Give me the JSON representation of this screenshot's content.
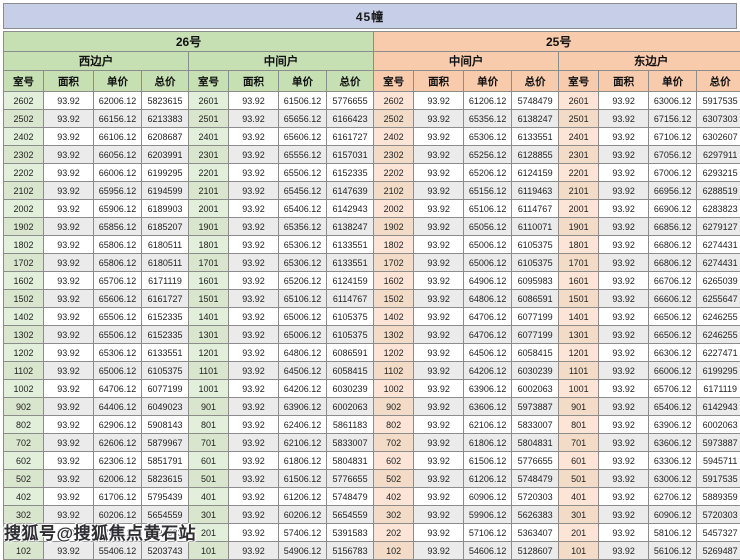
{
  "title": "45幢",
  "watermark": "搜狐号@搜狐焦点黄石站",
  "columns": [
    "室号",
    "面积",
    "单价",
    "总价"
  ],
  "colors": {
    "title_bar": "#c7cfe8",
    "green_header": "#c6e0b4",
    "green_room_cell": "#e2efda",
    "orange_header": "#f8cbad",
    "orange_room_cell": "#fce4d6",
    "stripe": "#ebebeb",
    "border": "#8c8c8c"
  },
  "sections": [
    {
      "building": "26号",
      "theme": "green",
      "units": [
        {
          "name": "西边户",
          "rows": [
            [
              "2602",
              "93.92",
              "62006.12",
              "5823615"
            ],
            [
              "2502",
              "93.92",
              "66156.12",
              "6213383"
            ],
            [
              "2402",
              "93.92",
              "66106.12",
              "6208687"
            ],
            [
              "2302",
              "93.92",
              "66056.12",
              "6203991"
            ],
            [
              "2202",
              "93.92",
              "66006.12",
              "6199295"
            ],
            [
              "2102",
              "93.92",
              "65956.12",
              "6194599"
            ],
            [
              "2002",
              "93.92",
              "65906.12",
              "6189903"
            ],
            [
              "1902",
              "93.92",
              "65856.12",
              "6185207"
            ],
            [
              "1802",
              "93.92",
              "65806.12",
              "6180511"
            ],
            [
              "1702",
              "93.92",
              "65806.12",
              "6180511"
            ],
            [
              "1602",
              "93.92",
              "65706.12",
              "6171119"
            ],
            [
              "1502",
              "93.92",
              "65606.12",
              "6161727"
            ],
            [
              "1402",
              "93.92",
              "65506.12",
              "6152335"
            ],
            [
              "1302",
              "93.92",
              "65506.12",
              "6152335"
            ],
            [
              "1202",
              "93.92",
              "65306.12",
              "6133551"
            ],
            [
              "1102",
              "93.92",
              "65006.12",
              "6105375"
            ],
            [
              "1002",
              "93.92",
              "64706.12",
              "6077199"
            ],
            [
              "902",
              "93.92",
              "64406.12",
              "6049023"
            ],
            [
              "802",
              "93.92",
              "62906.12",
              "5908143"
            ],
            [
              "702",
              "93.92",
              "62606.12",
              "5879967"
            ],
            [
              "602",
              "93.92",
              "62306.12",
              "5851791"
            ],
            [
              "502",
              "93.92",
              "62006.12",
              "5823615"
            ],
            [
              "402",
              "93.92",
              "61706.12",
              "5795439"
            ],
            [
              "302",
              "93.92",
              "60206.12",
              "5654559"
            ],
            [
              "202",
              "93.92",
              "57406.12",
              "5391583"
            ],
            [
              "102",
              "93.92",
              "55406.12",
              "5203743"
            ]
          ]
        },
        {
          "name": "中间户",
          "rows": [
            [
              "2601",
              "93.92",
              "61506.12",
              "5776655"
            ],
            [
              "2501",
              "93.92",
              "65656.12",
              "6166423"
            ],
            [
              "2401",
              "93.92",
              "65606.12",
              "6161727"
            ],
            [
              "2301",
              "93.92",
              "65556.12",
              "6157031"
            ],
            [
              "2201",
              "93.92",
              "65506.12",
              "6152335"
            ],
            [
              "2101",
              "93.92",
              "65456.12",
              "6147639"
            ],
            [
              "2001",
              "93.92",
              "65406.12",
              "6142943"
            ],
            [
              "1901",
              "93.92",
              "65356.12",
              "6138247"
            ],
            [
              "1801",
              "93.92",
              "65306.12",
              "6133551"
            ],
            [
              "1701",
              "93.92",
              "65306.12",
              "6133551"
            ],
            [
              "1601",
              "93.92",
              "65206.12",
              "6124159"
            ],
            [
              "1501",
              "93.92",
              "65106.12",
              "6114767"
            ],
            [
              "1401",
              "93.92",
              "65006.12",
              "6105375"
            ],
            [
              "1301",
              "93.92",
              "65006.12",
              "6105375"
            ],
            [
              "1201",
              "93.92",
              "64806.12",
              "6086591"
            ],
            [
              "1101",
              "93.92",
              "64506.12",
              "6058415"
            ],
            [
              "1001",
              "93.92",
              "64206.12",
              "6030239"
            ],
            [
              "901",
              "93.92",
              "63906.12",
              "6002063"
            ],
            [
              "801",
              "93.92",
              "62406.12",
              "5861183"
            ],
            [
              "701",
              "93.92",
              "62106.12",
              "5833007"
            ],
            [
              "601",
              "93.92",
              "61806.12",
              "5804831"
            ],
            [
              "501",
              "93.92",
              "61506.12",
              "5776655"
            ],
            [
              "401",
              "93.92",
              "61206.12",
              "5748479"
            ],
            [
              "301",
              "93.92",
              "60206.12",
              "5654559"
            ],
            [
              "201",
              "93.92",
              "57406.12",
              "5391583"
            ],
            [
              "101",
              "93.92",
              "54906.12",
              "5156783"
            ]
          ]
        }
      ]
    },
    {
      "building": "25号",
      "theme": "orange",
      "units": [
        {
          "name": "中间户",
          "rows": [
            [
              "2602",
              "93.92",
              "61206.12",
              "5748479"
            ],
            [
              "2502",
              "93.92",
              "65356.12",
              "6138247"
            ],
            [
              "2402",
              "93.92",
              "65306.12",
              "6133551"
            ],
            [
              "2302",
              "93.92",
              "65256.12",
              "6128855"
            ],
            [
              "2202",
              "93.92",
              "65206.12",
              "6124159"
            ],
            [
              "2102",
              "93.92",
              "65156.12",
              "6119463"
            ],
            [
              "2002",
              "93.92",
              "65106.12",
              "6114767"
            ],
            [
              "1902",
              "93.92",
              "65056.12",
              "6110071"
            ],
            [
              "1802",
              "93.92",
              "65006.12",
              "6105375"
            ],
            [
              "1702",
              "93.92",
              "65006.12",
              "6105375"
            ],
            [
              "1602",
              "93.92",
              "64906.12",
              "6095983"
            ],
            [
              "1502",
              "93.92",
              "64806.12",
              "6086591"
            ],
            [
              "1402",
              "93.92",
              "64706.12",
              "6077199"
            ],
            [
              "1302",
              "93.92",
              "64706.12",
              "6077199"
            ],
            [
              "1202",
              "93.92",
              "64506.12",
              "6058415"
            ],
            [
              "1102",
              "93.92",
              "64206.12",
              "6030239"
            ],
            [
              "1002",
              "93.92",
              "63906.12",
              "6002063"
            ],
            [
              "902",
              "93.92",
              "63606.12",
              "5973887"
            ],
            [
              "802",
              "93.92",
              "62106.12",
              "5833007"
            ],
            [
              "702",
              "93.92",
              "61806.12",
              "5804831"
            ],
            [
              "602",
              "93.92",
              "61506.12",
              "5776655"
            ],
            [
              "502",
              "93.92",
              "61206.12",
              "5748479"
            ],
            [
              "402",
              "93.92",
              "60906.12",
              "5720303"
            ],
            [
              "302",
              "93.92",
              "59906.12",
              "5626383"
            ],
            [
              "202",
              "93.92",
              "57106.12",
              "5363407"
            ],
            [
              "102",
              "93.92",
              "54606.12",
              "5128607"
            ]
          ]
        },
        {
          "name": "东边户",
          "rows": [
            [
              "2601",
              "93.92",
              "63006.12",
              "5917535"
            ],
            [
              "2501",
              "93.92",
              "67156.12",
              "6307303"
            ],
            [
              "2401",
              "93.92",
              "67106.12",
              "6302607"
            ],
            [
              "2301",
              "93.92",
              "67056.12",
              "6297911"
            ],
            [
              "2201",
              "93.92",
              "67006.12",
              "6293215"
            ],
            [
              "2101",
              "93.92",
              "66956.12",
              "6288519"
            ],
            [
              "2001",
              "93.92",
              "66906.12",
              "6283823"
            ],
            [
              "1901",
              "93.92",
              "66856.12",
              "6279127"
            ],
            [
              "1801",
              "93.92",
              "66806.12",
              "6274431"
            ],
            [
              "1701",
              "93.92",
              "66806.12",
              "6274431"
            ],
            [
              "1601",
              "93.92",
              "66706.12",
              "6265039"
            ],
            [
              "1501",
              "93.92",
              "66606.12",
              "6255647"
            ],
            [
              "1401",
              "93.92",
              "66506.12",
              "6246255"
            ],
            [
              "1301",
              "93.92",
              "66506.12",
              "6246255"
            ],
            [
              "1201",
              "93.92",
              "66306.12",
              "6227471"
            ],
            [
              "1101",
              "93.92",
              "66006.12",
              "6199295"
            ],
            [
              "1001",
              "93.92",
              "65706.12",
              "6171119"
            ],
            [
              "901",
              "93.92",
              "65406.12",
              "6142943"
            ],
            [
              "801",
              "93.92",
              "63906.12",
              "6002063"
            ],
            [
              "701",
              "93.92",
              "63606.12",
              "5973887"
            ],
            [
              "601",
              "93.92",
              "63306.12",
              "5945711"
            ],
            [
              "501",
              "93.92",
              "63006.12",
              "5917535"
            ],
            [
              "401",
              "93.92",
              "62706.12",
              "5889359"
            ],
            [
              "301",
              "93.92",
              "60906.12",
              "5720303"
            ],
            [
              "201",
              "93.92",
              "58106.12",
              "5457327"
            ],
            [
              "101",
              "93.92",
              "56106.12",
              "5269487"
            ]
          ]
        }
      ]
    }
  ]
}
